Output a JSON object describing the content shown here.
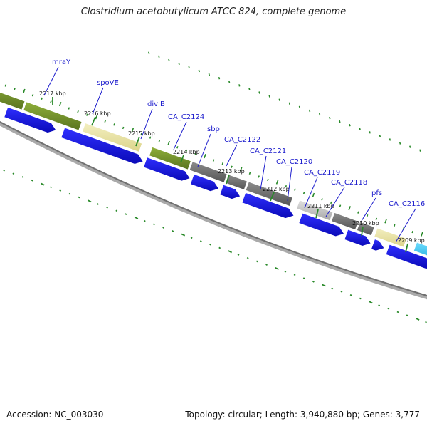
{
  "title": "Clostridium acetobutylicum ATCC 824, complete genome",
  "footer": {
    "accession": "Accession: NC_003030",
    "summary": "Topology: circular; Length: 3,940,880 bp; Genes: 3,777"
  },
  "colors": {
    "gene_label": "#1a1acc",
    "cds_arrow": "#1010e8",
    "backbone": "#7a7a7a",
    "tick": "#2a8a2a",
    "olive": "#6f8f2a",
    "khaki": "#e8e2a0",
    "gray": "#6e6e6e",
    "lightgray": "#c8c8c8",
    "cyan": "#29bde8",
    "green": "#30c830",
    "lime": "#9ad23a"
  },
  "kbp_labels": [
    "2217 kbp",
    "2216 kbp",
    "2215 kbp",
    "2214 kbp",
    "2213 kbp",
    "2212 kbp",
    "2211 kbp",
    "2210 kbp",
    "2209 kbp"
  ],
  "gene_labels": [
    "mraY",
    "spoVE",
    "divIB",
    "CA_C2124",
    "sbp",
    "CA_C2122",
    "CA_C2121",
    "CA_C2120",
    "CA_C2119",
    "CA_C2118",
    "pfs",
    "CA_C2116"
  ]
}
